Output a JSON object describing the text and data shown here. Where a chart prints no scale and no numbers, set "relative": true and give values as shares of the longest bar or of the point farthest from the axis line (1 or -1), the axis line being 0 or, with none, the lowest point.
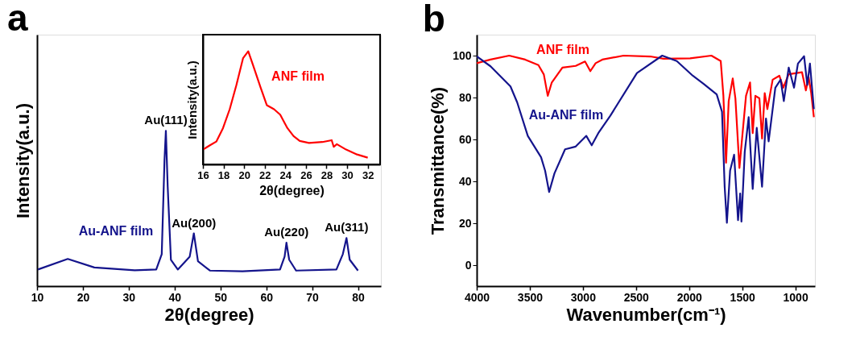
{
  "chart_data": [
    {
      "type": "line",
      "title": "a",
      "xlabel": "2θ(degree)",
      "ylabel": "Intensity(a.u.)",
      "relative": true,
      "xlim": [
        10,
        85
      ],
      "xticks": [
        10,
        20,
        30,
        40,
        50,
        60,
        70,
        80
      ],
      "series": [
        {
          "name": "Au-ANF film",
          "color": "#14148c",
          "x": [
            10.2,
            16.7,
            22.5,
            31.3,
            36,
            37.2,
            37.8,
            38.1,
            38.5,
            39.2,
            40.7,
            43.3,
            44.2,
            45.1,
            47.7,
            54.8,
            63,
            64.0,
            64.4,
            65.0,
            66.5,
            75.3,
            76.7,
            77.5,
            78.2,
            80
          ],
          "values": [
            0.107,
            0.175,
            0.12,
            0.102,
            0.107,
            0.206,
            0.81,
            1.0,
            0.64,
            0.17,
            0.107,
            0.19,
            0.34,
            0.16,
            0.1,
            0.095,
            0.107,
            0.19,
            0.28,
            0.17,
            0.1,
            0.107,
            0.206,
            0.31,
            0.17,
            0.1
          ]
        }
      ],
      "annotations": [
        {
          "text": "Au(111)",
          "x": 38.1,
          "y": 1.0
        },
        {
          "text": "Au(200)",
          "x": 44.2,
          "y": 0.34
        },
        {
          "text": "Au(220)",
          "x": 64.4,
          "y": 0.28
        },
        {
          "text": "Au(311)",
          "x": 77.5,
          "y": 0.31
        }
      ]
    },
    {
      "type": "line",
      "xlabel": "2θ(degree)",
      "ylabel": "Intensity(a.u.)",
      "relative": true,
      "xlim": [
        16,
        33.2
      ],
      "xticks": [
        16,
        18,
        20,
        22,
        24,
        26,
        28,
        30,
        32
      ],
      "series": [
        {
          "name": "ANF film",
          "color": "#ff0000",
          "x": [
            16.0,
            16.65,
            17.3,
            17.95,
            18.6,
            19.25,
            19.9,
            20.4,
            20.9,
            21.6,
            22.2,
            22.9,
            23.5,
            24.2,
            24.8,
            25.4,
            26.3,
            27.6,
            28.5,
            28.7,
            29.0,
            29.9,
            30.96,
            32.0
          ],
          "values": [
            0.131,
            0.167,
            0.202,
            0.321,
            0.488,
            0.702,
            0.94,
            1.0,
            0.869,
            0.679,
            0.524,
            0.488,
            0.44,
            0.321,
            0.25,
            0.207,
            0.19,
            0.198,
            0.214,
            0.155,
            0.179,
            0.131,
            0.088,
            0.06
          ]
        }
      ]
    },
    {
      "type": "line",
      "title": "b",
      "xlabel": "Wavenumber(cm⁻¹)",
      "ylabel": "Transmittance(%)",
      "xlim": [
        4000,
        815
      ],
      "xticks": [
        4000,
        3500,
        3000,
        2500,
        2000,
        1500,
        1000
      ],
      "ylim": [
        -10,
        110
      ],
      "yticks": [
        0,
        20,
        40,
        60,
        80,
        100
      ],
      "series": [
        {
          "name": "ANF film",
          "color": "#ff0000",
          "x": [
            4000,
            3870,
            3694,
            3544,
            3419,
            3368,
            3331,
            3293,
            3193,
            3068,
            2980,
            2930,
            2880,
            2817,
            2617,
            2366,
            2241,
            1990,
            1790,
            1702,
            1677,
            1652,
            1627,
            1589,
            1564,
            1526,
            1501,
            1464,
            1426,
            1401,
            1376,
            1338,
            1313,
            1288,
            1263,
            1213,
            1150,
            1113,
            1062,
            937,
            900,
            875,
            850,
            825
          ],
          "values": [
            96.4,
            98.1,
            100,
            98.1,
            95.5,
            91,
            80.8,
            87.2,
            94.3,
            95.1,
            97.2,
            92.6,
            96.4,
            98.1,
            100,
            99.6,
            98.5,
            98.7,
            100,
            97.4,
            80.8,
            48.9,
            78.3,
            89.1,
            79.6,
            46.4,
            60.4,
            80.8,
            87.2,
            63,
            80.8,
            79.6,
            60.4,
            82.1,
            74.5,
            88.5,
            90.4,
            84.7,
            91.1,
            92.1,
            83.4,
            89.8,
            82.1,
            70.6
          ]
        },
        {
          "name": "Au-ANF film",
          "color": "#14148c",
          "x": [
            4000,
            3870,
            3682,
            3619,
            3519,
            3394,
            3356,
            3318,
            3268,
            3168,
            3068,
            2968,
            2917,
            2855,
            2742,
            2491,
            2253,
            2116,
            1965,
            1865,
            1740,
            1690,
            1665,
            1644,
            1614,
            1576,
            1539,
            1519,
            1507,
            1476,
            1439,
            1401,
            1363,
            1313,
            1276,
            1251,
            1188,
            1138,
            1108,
            1062,
            1012,
            975,
            917,
            887,
            862,
            825
          ],
          "values": [
            99.7,
            94.9,
            85.3,
            77.7,
            61.7,
            51.5,
            45.1,
            34.9,
            43.8,
            55.3,
            56.6,
            61.7,
            57.2,
            63,
            71.3,
            91.7,
            100,
            97.4,
            90.4,
            86.6,
            81.5,
            73.2,
            37.4,
            20.2,
            45.1,
            52.7,
            21.5,
            34.2,
            20.8,
            54,
            70.6,
            36.4,
            65.5,
            37.4,
            70,
            59.1,
            84.7,
            88.5,
            78.3,
            94.3,
            84.7,
            96.2,
            99.7,
            86,
            96.2,
            74.5
          ]
        }
      ]
    }
  ]
}
